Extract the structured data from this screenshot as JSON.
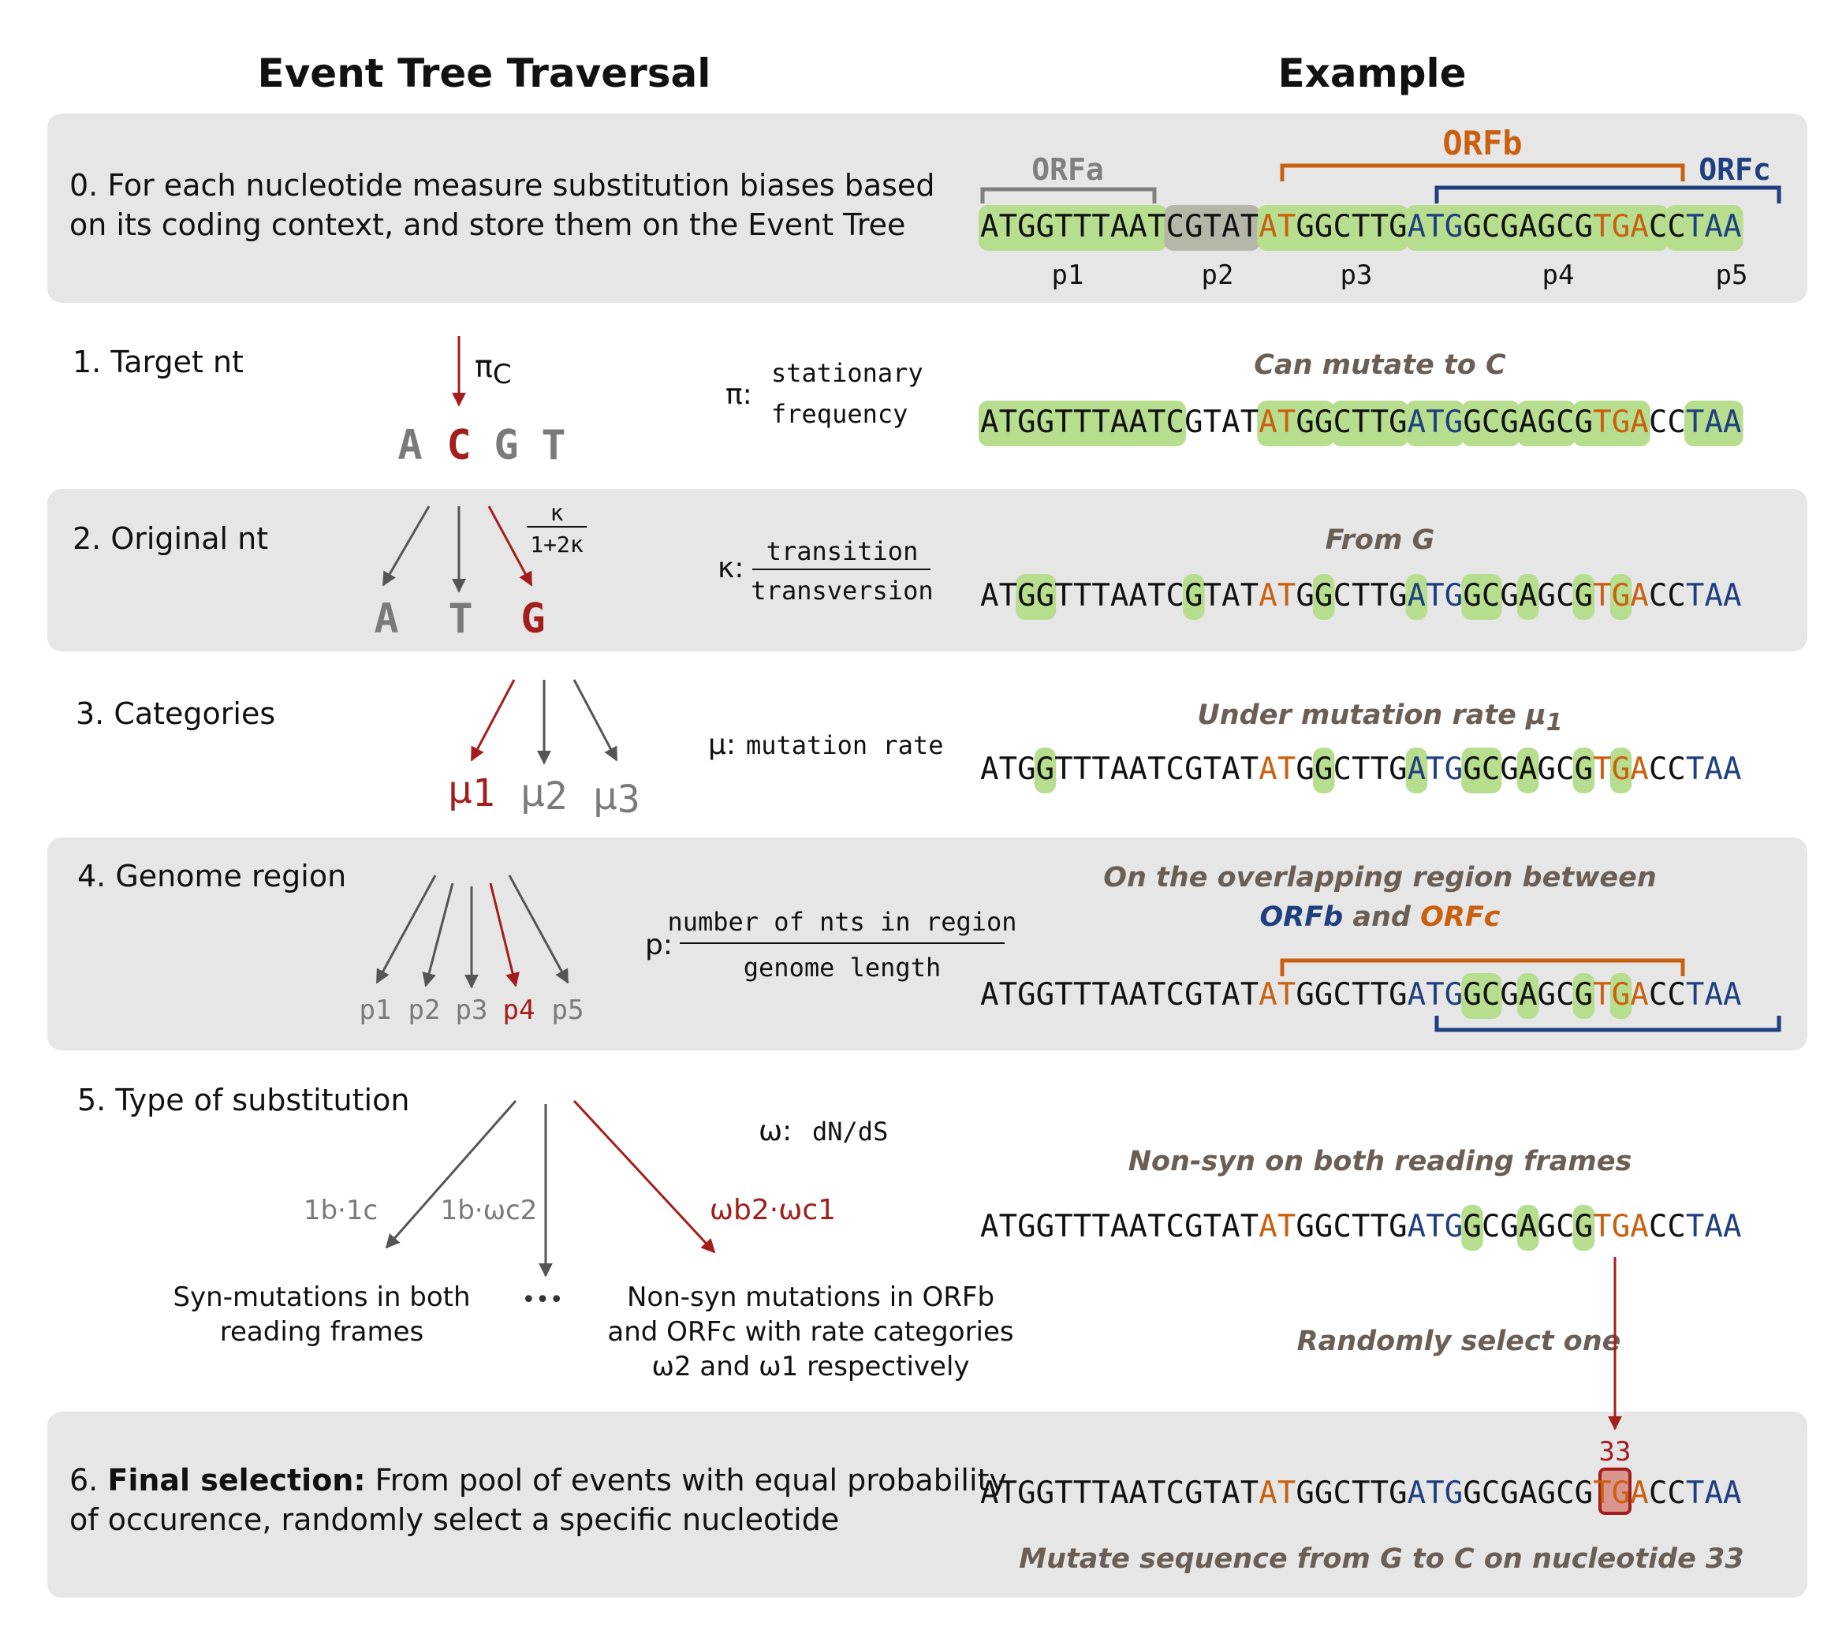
{
  "headers": {
    "left": "Event Tree Traversal",
    "right": "Example"
  },
  "colors": {
    "band": "#e6e6e6",
    "highlight": "#b7dd8e",
    "p2_box": "#b5b5a8",
    "orfa": "#7f7f7f",
    "orfb": "#c8600f",
    "orfc": "#1f3f7f",
    "select": "#a31d1d",
    "grey_nt": "#7a7a7a",
    "note": "#6b5e55"
  },
  "sequence": "ATGGTTTAATCGTATATGGCTTGATGGCGAGCGTGACCTAA",
  "steps": {
    "s0": {
      "line1": "0. For each nucleotide measure substitution biases based",
      "line2": "on its coding context, and store them on the Event Tree"
    },
    "s1": {
      "label": "1. Target nt"
    },
    "s2": {
      "label": "2. Original nt"
    },
    "s3": {
      "label": "3. Categories"
    },
    "s4": {
      "label": "4. Genome region"
    },
    "s5": {
      "label": "5. Type of substitution"
    },
    "s6": {
      "number": "6.",
      "bold": "Final selection:",
      "line1_rest": "From pool of events with equal probability",
      "line2": "of occurence, randomly select a specific nucleotide"
    }
  },
  "tree": {
    "pi_label": "π",
    "pi_sub": "C",
    "targets": [
      "A",
      "C",
      "G",
      "T"
    ],
    "kappa_num": "κ",
    "kappa_den": "1+2κ",
    "originals": [
      "A",
      "T",
      "G"
    ],
    "mu_symbol": "μ",
    "categories": [
      "1",
      "2",
      "3"
    ],
    "region_symbol": "p",
    "regions": [
      "1",
      "2",
      "3",
      "4",
      "5"
    ],
    "branch_left": "1b·1c",
    "branch_mid": "1b·ωc2",
    "branch_right": "ωb2·ωc1",
    "syn_caption": [
      "Syn-mutations in both",
      "reading frames"
    ],
    "ellipsis": "•••",
    "nonsyn_caption": [
      "Non-syn mutations in ORFb",
      "and ORFc with rate categories",
      "ω2 and ω1 respectively"
    ]
  },
  "definitions": {
    "pi_sym": "π:",
    "pi_line1": "stationary",
    "pi_line2": "frequency",
    "kappa_sym": "κ:",
    "kappa_num": "transition",
    "kappa_den": "transversion",
    "mu_sym": "μ:",
    "mu_text": "mutation rate",
    "p_sym": "p:",
    "p_num": "number of nts in region",
    "p_den": "genome length",
    "omega_sym": "ω:",
    "omega_text": "dN/dS"
  },
  "example": {
    "orfa": "ORFa",
    "orfb": "ORFb",
    "orfc": "ORFc",
    "parts": [
      "p1",
      "p2",
      "p3",
      "p4",
      "p5"
    ],
    "a1": "Can mutate to C",
    "a2": "From G",
    "a3_text": "Under mutation rate μ",
    "a3_sub": "1",
    "a4_line1": "On the overlapping region between",
    "a4_orfb": "ORFb",
    "a4_and": "and",
    "a4_orfc": "ORFc",
    "a5": "Non-syn on both reading frames",
    "random": "Randomly select one",
    "position": "33",
    "final_note": "Mutate sequence from G to C on nucleotide 33"
  },
  "highlights": {
    "row1": [
      [
        0,
        10
      ],
      [
        15,
        18
      ],
      [
        19,
        22
      ],
      [
        23,
        25
      ],
      [
        26,
        28
      ],
      [
        29,
        31
      ],
      [
        32,
        35
      ],
      [
        38,
        40
      ]
    ],
    "row2": [
      [
        2,
        3
      ],
      [
        11,
        11
      ],
      [
        18,
        18
      ],
      [
        23,
        23
      ],
      [
        26,
        27
      ],
      [
        29,
        29
      ],
      [
        32,
        32
      ],
      [
        34,
        34
      ]
    ],
    "row3": [
      [
        3,
        3
      ],
      [
        18,
        18
      ],
      [
        23,
        23
      ],
      [
        26,
        27
      ],
      [
        29,
        29
      ],
      [
        32,
        32
      ],
      [
        34,
        34
      ]
    ],
    "row4": [
      [
        26,
        27
      ],
      [
        29,
        29
      ],
      [
        32,
        32
      ],
      [
        34,
        34
      ]
    ],
    "row5": [
      [
        26,
        26
      ],
      [
        29,
        29
      ],
      [
        32,
        32
      ]
    ],
    "row6": []
  }
}
